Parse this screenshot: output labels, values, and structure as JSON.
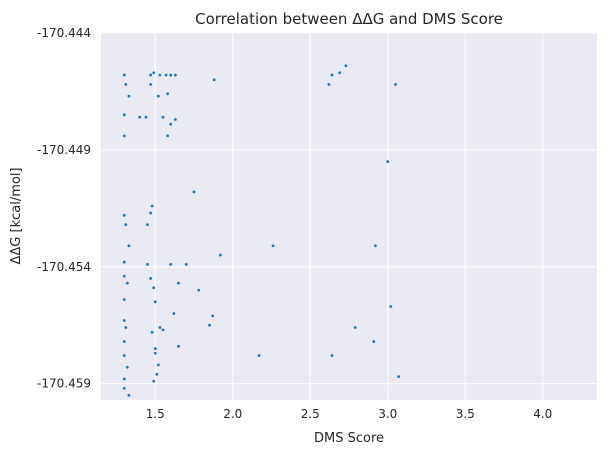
{
  "chart_data": {
    "type": "scatter",
    "title": "Correlation between ΔΔG and DMS Score",
    "xlabel": "DMS Score",
    "ylabel": "ΔΔG [kcal/mol]",
    "xlim": [
      1.15,
      4.35
    ],
    "ylim": [
      -170.4597,
      -170.444
    ],
    "xticks": [
      1.5,
      2.0,
      2.5,
      3.0,
      3.5,
      4.0
    ],
    "xtick_labels": [
      "1.5",
      "2.0",
      "2.5",
      "3.0",
      "3.5",
      "4.0"
    ],
    "yticks": [
      -170.444,
      -170.449,
      -170.454,
      -170.459
    ],
    "ytick_labels": [
      "-170.444",
      "-170.449",
      "-170.454",
      "-170.459"
    ],
    "grid": true,
    "style": "seaborn darkgrid",
    "colors": {
      "background": "#eaeaf2",
      "grid": "#ffffff",
      "marker": "#1f77b4"
    },
    "series": [
      {
        "points": [
          [
            1.3,
            -170.4458
          ],
          [
            1.31,
            -170.4462
          ],
          [
            1.33,
            -170.4467
          ],
          [
            1.3,
            -170.4475
          ],
          [
            1.3,
            -170.4484
          ],
          [
            1.3,
            -170.4518
          ],
          [
            1.31,
            -170.4522
          ],
          [
            1.33,
            -170.4531
          ],
          [
            1.3,
            -170.4538
          ],
          [
            1.3,
            -170.4544
          ],
          [
            1.32,
            -170.4547
          ],
          [
            1.3,
            -170.4554
          ],
          [
            1.3,
            -170.4563
          ],
          [
            1.31,
            -170.4566
          ],
          [
            1.3,
            -170.4572
          ],
          [
            1.3,
            -170.4578
          ],
          [
            1.32,
            -170.4583
          ],
          [
            1.3,
            -170.4588
          ],
          [
            1.3,
            -170.4592
          ],
          [
            1.33,
            -170.4595
          ],
          [
            1.4,
            -170.4476
          ],
          [
            1.44,
            -170.4476
          ],
          [
            1.47,
            -170.4517
          ],
          [
            1.45,
            -170.4522
          ],
          [
            1.48,
            -170.4514
          ],
          [
            1.45,
            -170.4539
          ],
          [
            1.47,
            -170.4545
          ],
          [
            1.49,
            -170.4549
          ],
          [
            1.48,
            -170.4568
          ],
          [
            1.5,
            -170.4575
          ],
          [
            1.49,
            -170.4589
          ],
          [
            1.51,
            -170.4586
          ],
          [
            1.52,
            -170.4582
          ],
          [
            1.55,
            -170.4567
          ],
          [
            1.5,
            -170.4555
          ],
          [
            1.5,
            -170.4577
          ],
          [
            1.53,
            -170.4566
          ],
          [
            1.47,
            -170.4458
          ],
          [
            1.49,
            -170.4457
          ],
          [
            1.53,
            -170.4458
          ],
          [
            1.57,
            -170.4458
          ],
          [
            1.6,
            -170.4458
          ],
          [
            1.63,
            -170.4458
          ],
          [
            1.58,
            -170.4466
          ],
          [
            1.52,
            -170.4467
          ],
          [
            1.47,
            -170.4462
          ],
          [
            1.55,
            -170.4476
          ],
          [
            1.6,
            -170.4479
          ],
          [
            1.63,
            -170.4477
          ],
          [
            1.58,
            -170.4484
          ],
          [
            1.6,
            -170.4539
          ],
          [
            1.7,
            -170.4539
          ],
          [
            1.75,
            -170.4508
          ],
          [
            1.78,
            -170.455
          ],
          [
            1.65,
            -170.4547
          ],
          [
            1.62,
            -170.456
          ],
          [
            1.65,
            -170.4574
          ],
          [
            1.85,
            -170.4565
          ],
          [
            1.87,
            -170.4561
          ],
          [
            1.88,
            -170.446
          ],
          [
            1.92,
            -170.4535
          ],
          [
            2.17,
            -170.4578
          ],
          [
            2.26,
            -170.4531
          ],
          [
            2.62,
            -170.4462
          ],
          [
            2.64,
            -170.4458
          ],
          [
            2.69,
            -170.4457
          ],
          [
            2.73,
            -170.4454
          ],
          [
            2.64,
            -170.4578
          ],
          [
            2.79,
            -170.4566
          ],
          [
            2.91,
            -170.4572
          ],
          [
            2.92,
            -170.4531
          ],
          [
            3.0,
            -170.4495
          ],
          [
            3.02,
            -170.4557
          ],
          [
            3.05,
            -170.4462
          ],
          [
            3.07,
            -170.4587
          ]
        ]
      }
    ]
  }
}
